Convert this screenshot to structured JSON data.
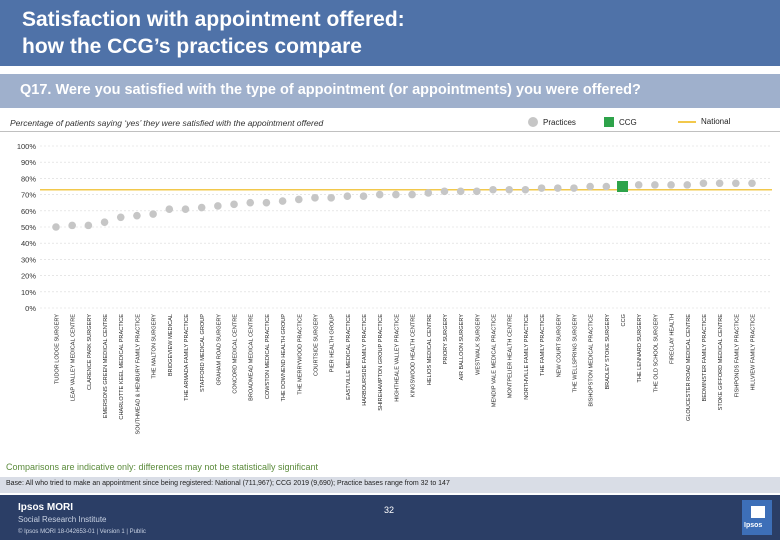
{
  "header": {
    "title_line1": "Satisfaction with appointment offered:",
    "title_line2": "how the CCG’s practices compare",
    "question": "Q17. Were you satisfied with the type of appointment (or appointments) you were offered?",
    "subtitle": "Percentage of patients saying ‘yes’ they were satisfied with the appointment offered"
  },
  "legend": {
    "practices": "Practices",
    "ccg": "CCG",
    "national": "National"
  },
  "colors": {
    "title_bar": "#4f72a8",
    "question_bar": "#9fb0cc",
    "practice_dot": "#c6c6c6",
    "ccg_marker": "#2ea34a",
    "national_line": "#f2c84b",
    "gridline": "#d8d8d8"
  },
  "chart_data": {
    "type": "scatter",
    "title": "Satisfaction with appointment offered",
    "ylabel": "Percentage of patients saying 'yes'",
    "ylim": [
      0,
      100
    ],
    "yticks": [
      "0%",
      "10%",
      "20%",
      "30%",
      "40%",
      "50%",
      "60%",
      "70%",
      "80%",
      "90%",
      "100%"
    ],
    "national": 73,
    "ccg_label": "CCG",
    "categories": [
      "TUDOR LODGE SURGERY",
      "LEAP VALLEY MEDICAL CENTRE",
      "CLARENCE PARK SURGERY",
      "EMERSONS GREEN MEDICAL CENTRE",
      "CHARLOTTE KEEL MEDICAL PRACTICE",
      "SOUTHMEAD & HENBURY FAMILY PRACTICE",
      "THE MALTON SURGERY",
      "BRIDGEVIEW MEDICAL",
      "THE ARMADA FAMILY PRACTICE",
      "STAFFORD MEDICAL GROUP",
      "GRAHAM ROAD SURGERY",
      "CONCORD MEDICAL CENTRE",
      "BROADMEAD MEDICAL CENTRE",
      "COWSTON MEDICAL PRACTICE",
      "THE DOWNEND HEALTH GROUP",
      "THE MERRYWOOD PRACTICE",
      "COURTSIDE SURGERY",
      "PIER HEALTH GROUP",
      "EASTVILLE MEDICAL PRACTICE",
      "HARBOURSIDE FAMILY PRACTICE",
      "SHIREHAMPTON GROUP PRACTICE",
      "HIGHTHEALE VALLEY PRACTICE",
      "KINGSWOOD HEALTH CENTRE",
      "HELIOS MEDICAL CENTRE",
      "PRIORY SURGERY",
      "AIR BALLOON SURGERY",
      "WESTWALK SURGERY",
      "MENDIP VALE MEDICAL PRACTICE",
      "MONTPELIER HEALTH CENTRE",
      "NORTHVILLE FAMILY PRACTICE",
      "THE FAMILY PRACTICE",
      "NEW COURT SURGERY",
      "THE WELLSPRING SURGERY",
      "BISHOPSTON MEDICAL PRACTICE",
      "BRADLEY STOKE SURGERY",
      "CCG",
      "THE LENNARD SURGERY",
      "THE OLD SCHOOL SURGERY",
      "FIRECLAY HEALTH",
      "GLOUCESTER ROAD MEDICAL CENTRE",
      "BEDMINSTER FAMILY PRACTICE",
      "STOKE GIFFORD MEDICAL CENTRE",
      "FISHPONDS FAMILY PRACTICE",
      "HILLVIEW FAMILY PRACTICE"
    ],
    "values": [
      50,
      51,
      51,
      53,
      56,
      57,
      58,
      61,
      61,
      62,
      63,
      64,
      65,
      65,
      66,
      67,
      68,
      68,
      69,
      69,
      70,
      70,
      70,
      71,
      72,
      72,
      72,
      73,
      73,
      73,
      74,
      74,
      74,
      75,
      75,
      75,
      76,
      76,
      76,
      76,
      77,
      77,
      77,
      77
    ]
  },
  "notes": {
    "caveat": "Comparisons are indicative only: differences may not be statistically significant",
    "base": "Base: All who tried to make an appointment since being registered: National (711,967); CCG 2019 (9,690); Practice bases range from 32 to 147"
  },
  "footer": {
    "brand": "Ipsos MORI",
    "subbrand": "Social Research Institute",
    "copyright": "© Ipsos MORI     18-042653-01 | Version 1 | Public",
    "page_number": "32",
    "logo_text": "Ipsos"
  }
}
